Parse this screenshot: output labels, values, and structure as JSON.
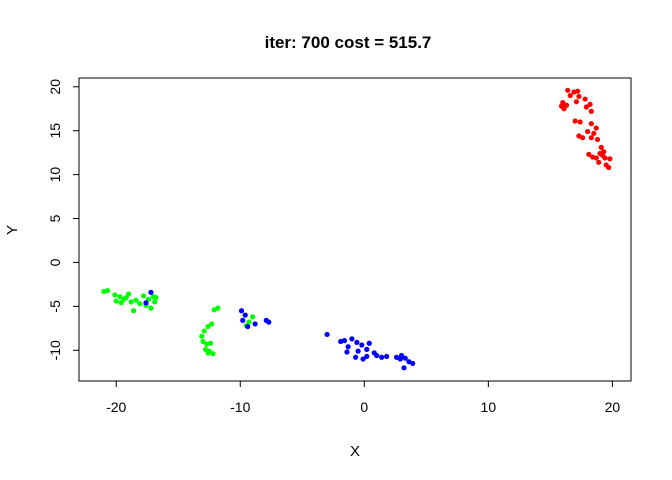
{
  "chart_data": {
    "type": "scatter",
    "title": "iter: 700 cost = 515.7",
    "xlabel": "X",
    "ylabel": "Y",
    "xlim": [
      -23,
      21.5
    ],
    "ylim": [
      -13.5,
      21
    ],
    "xticks": [
      -20,
      -10,
      0,
      10,
      20
    ],
    "xtick_labels": [
      "-20",
      "-10",
      "0",
      "10",
      "20"
    ],
    "yticks": [
      -10,
      -5,
      0,
      5,
      10,
      15,
      20
    ],
    "ytick_labels": [
      "-10",
      "-5",
      "0",
      "5",
      "10",
      "15",
      "20"
    ],
    "grid": false,
    "legend": null,
    "series": [
      {
        "name": "red",
        "color": "#ff0000",
        "points": [
          [
            16.4,
            19.6
          ],
          [
            16.9,
            19.4
          ],
          [
            17.2,
            19.5
          ],
          [
            16.6,
            19.0
          ],
          [
            17.3,
            18.9
          ],
          [
            16.0,
            18.2
          ],
          [
            15.9,
            17.8
          ],
          [
            16.3,
            17.9
          ],
          [
            16.1,
            17.5
          ],
          [
            17.1,
            18.3
          ],
          [
            17.8,
            18.6
          ],
          [
            18.2,
            18.0
          ],
          [
            17.9,
            17.7
          ],
          [
            18.3,
            17.2
          ],
          [
            17.0,
            16.1
          ],
          [
            17.4,
            16.0
          ],
          [
            18.3,
            15.8
          ],
          [
            17.3,
            14.4
          ],
          [
            17.6,
            14.2
          ],
          [
            18.0,
            14.9
          ],
          [
            18.7,
            15.3
          ],
          [
            18.5,
            14.7
          ],
          [
            18.3,
            14.2
          ],
          [
            18.8,
            14.0
          ],
          [
            19.1,
            13.1
          ],
          [
            19.3,
            12.6
          ],
          [
            18.1,
            12.3
          ],
          [
            18.4,
            12.0
          ],
          [
            18.7,
            11.9
          ],
          [
            19.4,
            11.9
          ],
          [
            19.8,
            11.8
          ],
          [
            18.9,
            11.4
          ],
          [
            19.5,
            11.1
          ],
          [
            19.7,
            10.8
          ],
          [
            19.2,
            12.2
          ],
          [
            19.0,
            12.4
          ]
        ]
      },
      {
        "name": "green",
        "color": "#00ff00",
        "points": [
          [
            -21.0,
            -3.3
          ],
          [
            -20.7,
            -3.2
          ],
          [
            -20.1,
            -3.7
          ],
          [
            -19.7,
            -3.9
          ],
          [
            -20.0,
            -4.4
          ],
          [
            -19.6,
            -4.6
          ],
          [
            -19.2,
            -4.0
          ],
          [
            -19.0,
            -3.6
          ],
          [
            -18.8,
            -4.5
          ],
          [
            -18.4,
            -4.3
          ],
          [
            -18.1,
            -4.7
          ],
          [
            -18.6,
            -5.5
          ],
          [
            -17.8,
            -3.8
          ],
          [
            -17.6,
            -4.9
          ],
          [
            -17.2,
            -5.2
          ],
          [
            -17.4,
            -4.2
          ],
          [
            -16.8,
            -4.0
          ],
          [
            -16.9,
            -4.5
          ],
          [
            -17.0,
            -3.9
          ],
          [
            -19.4,
            -4.2
          ],
          [
            -12.1,
            -5.4
          ],
          [
            -11.8,
            -5.2
          ],
          [
            -12.6,
            -7.3
          ],
          [
            -12.9,
            -7.8
          ],
          [
            -13.1,
            -8.4
          ],
          [
            -12.3,
            -7.0
          ],
          [
            -13.0,
            -9.0
          ],
          [
            -12.7,
            -9.3
          ],
          [
            -12.4,
            -9.2
          ],
          [
            -12.8,
            -9.9
          ],
          [
            -12.5,
            -10.1
          ],
          [
            -12.2,
            -10.4
          ],
          [
            -12.6,
            -10.3
          ],
          [
            -9.5,
            -7.2
          ],
          [
            -9.0,
            -6.2
          ],
          [
            -9.3,
            -6.8
          ]
        ]
      },
      {
        "name": "blue",
        "color": "#0000ff",
        "points": [
          [
            -17.2,
            -3.4
          ],
          [
            -17.6,
            -4.6
          ],
          [
            -9.9,
            -5.5
          ],
          [
            -9.6,
            -6.0
          ],
          [
            -9.8,
            -6.6
          ],
          [
            -9.4,
            -7.3
          ],
          [
            -8.8,
            -7.0
          ],
          [
            -7.9,
            -6.6
          ],
          [
            -7.7,
            -6.8
          ],
          [
            -3.0,
            -8.2
          ],
          [
            -1.9,
            -9.0
          ],
          [
            -1.6,
            -8.9
          ],
          [
            -1.0,
            -8.7
          ],
          [
            -0.6,
            -9.1
          ],
          [
            -0.2,
            -9.4
          ],
          [
            0.4,
            -9.2
          ],
          [
            -1.3,
            -9.6
          ],
          [
            -1.4,
            -10.2
          ],
          [
            -0.5,
            -10.1
          ],
          [
            0.2,
            -9.9
          ],
          [
            0.8,
            -10.3
          ],
          [
            1.0,
            -10.6
          ],
          [
            1.4,
            -10.8
          ],
          [
            1.8,
            -10.7
          ],
          [
            -0.7,
            -10.8
          ],
          [
            -0.1,
            -11.0
          ],
          [
            0.2,
            -10.7
          ],
          [
            2.6,
            -10.8
          ],
          [
            3.0,
            -10.6
          ],
          [
            3.3,
            -10.9
          ],
          [
            3.6,
            -11.3
          ],
          [
            3.9,
            -11.5
          ],
          [
            3.2,
            -12.0
          ],
          [
            2.9,
            -11.0
          ]
        ]
      }
    ]
  }
}
